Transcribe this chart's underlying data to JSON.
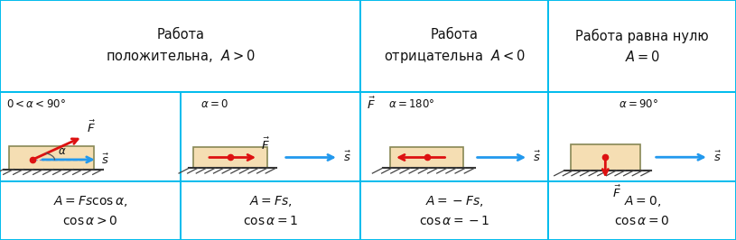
{
  "border_color": "#00BCED",
  "bg_color": "#FFFFFF",
  "box_fill": "#F5DEB3",
  "box_edge": "#888855",
  "hatch_color": "#444444",
  "red_color": "#DD1111",
  "blue_color": "#2299EE",
  "text_color": "#111111",
  "cols": [
    0.0,
    0.245,
    0.49,
    0.745,
    1.0
  ],
  "rows": [
    1.0,
    0.615,
    0.245,
    0.0
  ],
  "header1_text": "Работа\nположительна,  $\\mathit{A}>0$",
  "header2_text": "Работа\nотрицательна  $\\mathit{A}<0$",
  "header3_text": "Работа равна нулю\n$\\mathit{A}=0$",
  "formula1": "$A = Fs\\cos\\alpha,$\n$\\cos\\alpha > 0$",
  "formula2": "$A = Fs,$\n$\\cos\\alpha = 1$",
  "formula3": "$A = -Fs,$\n$\\cos\\alpha = -1$",
  "formula4": "$A = 0,$\n$\\cos\\alpha = 0$"
}
